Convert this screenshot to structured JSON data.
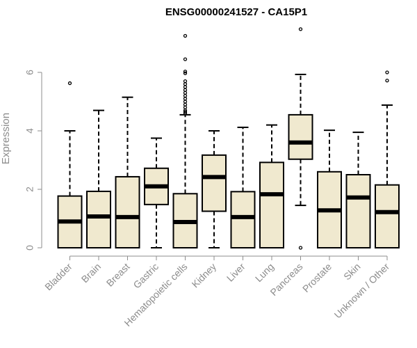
{
  "chart_data": {
    "type": "box",
    "title": "ENSG00000241527 - CA15P1",
    "xlabel": "",
    "ylabel": "Expression",
    "ylim": [
      0,
      7.5
    ],
    "yticks": [
      0,
      2,
      4,
      6
    ],
    "box_fill": "#f0e9cf",
    "categories": [
      "Bladder",
      "Brain",
      "Breast",
      "Gastric",
      "Hematopoietic cells",
      "Kidney",
      "Liver",
      "Lung",
      "Pancreas",
      "Prostate",
      "Skin",
      "Unknown / Other"
    ],
    "boxes": [
      {
        "min": 0,
        "q1": 0,
        "median": 0.9,
        "q3": 1.77,
        "max": 4.0,
        "outliers": [
          5.63
        ]
      },
      {
        "min": 0,
        "q1": 0,
        "median": 1.07,
        "q3": 1.93,
        "max": 4.7,
        "outliers": []
      },
      {
        "min": 0,
        "q1": 0,
        "median": 1.05,
        "q3": 2.43,
        "max": 5.15,
        "outliers": []
      },
      {
        "min": 0,
        "q1": 1.48,
        "median": 2.1,
        "q3": 2.72,
        "max": 3.75,
        "outliers": []
      },
      {
        "min": 0,
        "q1": 0,
        "median": 0.88,
        "q3": 1.85,
        "max": 4.55,
        "outliers": [
          4.6,
          4.65,
          4.7,
          4.8,
          4.9,
          5.0,
          5.1,
          5.2,
          5.3,
          5.4,
          5.5,
          5.6,
          5.7,
          5.97,
          6.03,
          6.45,
          7.25
        ]
      },
      {
        "min": 0,
        "q1": 1.25,
        "median": 2.42,
        "q3": 3.17,
        "max": 4.0,
        "outliers": []
      },
      {
        "min": 0,
        "q1": 0,
        "median": 1.05,
        "q3": 1.92,
        "max": 4.12,
        "outliers": []
      },
      {
        "min": 0,
        "q1": 0,
        "median": 1.83,
        "q3": 2.92,
        "max": 4.2,
        "outliers": []
      },
      {
        "min": 1.45,
        "q1": 3.03,
        "median": 3.6,
        "q3": 4.55,
        "max": 5.93,
        "outliers": [
          0,
          7.48
        ]
      },
      {
        "min": 0,
        "q1": 0,
        "median": 1.28,
        "q3": 2.6,
        "max": 4.02,
        "outliers": []
      },
      {
        "min": 0,
        "q1": 0,
        "median": 1.72,
        "q3": 2.5,
        "max": 3.95,
        "outliers": []
      },
      {
        "min": 0,
        "q1": 0,
        "median": 1.22,
        "q3": 2.15,
        "max": 4.88,
        "outliers": [
          5.72,
          6.0
        ]
      }
    ]
  }
}
